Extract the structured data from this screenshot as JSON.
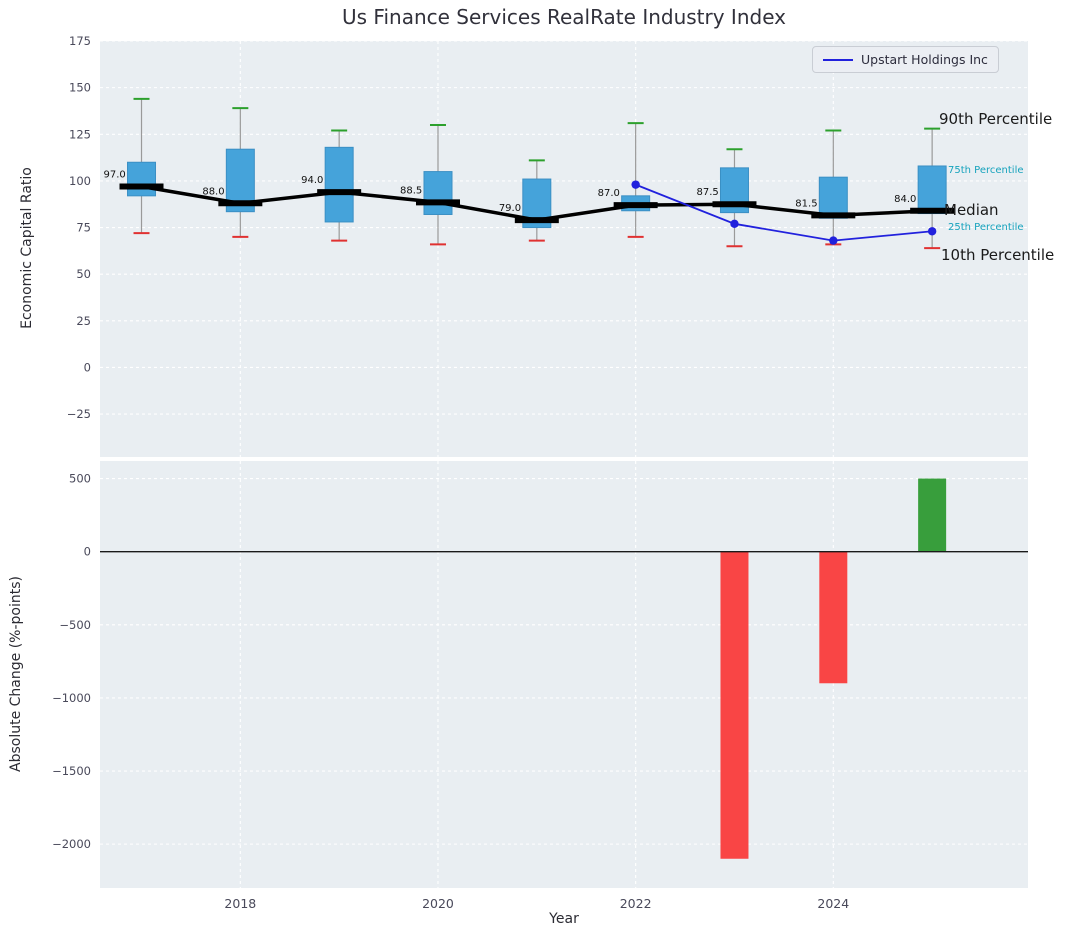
{
  "figure": {
    "title": "Us Finance Services RealRate Industry Index",
    "top_ylabel": "Economic Capital Ratio",
    "bottom_ylabel": "Absolute Change (%-points)",
    "xlabel": "Year",
    "legend_label": "Upstart Holdings Inc",
    "annotations": [
      {
        "id": "p90",
        "label": "90th Percentile"
      },
      {
        "id": "p75",
        "label": "75th Percentile"
      },
      {
        "id": "median",
        "label": "Median"
      },
      {
        "id": "p25",
        "label": "25th Percentile"
      },
      {
        "id": "p10",
        "label": "10th Percentile"
      }
    ]
  },
  "colors": {
    "plot_bg": "#e9eef2",
    "grid": "#ffffff",
    "box_fill": "#45a3da",
    "box_edge": "#3b8fc4",
    "whisker": "#9a9a9a",
    "cap_high": "#2ca02c",
    "cap_low": "#e03131",
    "median": "#000000",
    "company_line": "#2121dd",
    "tick_label": "#49495a",
    "annotation_teal": "#17a3bd",
    "bar_negative": "#f94545",
    "bar_positive": "#389e3c"
  },
  "chart_data": [
    {
      "type": "boxplot",
      "title": "Us Finance Services RealRate Industry Index",
      "ylabel": "Economic Capital Ratio",
      "ylim": [
        -48,
        175
      ],
      "yticks": [
        175,
        150,
        125,
        100,
        75,
        50,
        25,
        0,
        -25
      ],
      "xlim": [
        2016.58,
        2025.97
      ],
      "xticks": [
        2018,
        2020,
        2022,
        2024
      ],
      "grid": true,
      "legend_position": "upper right",
      "boxes": [
        {
          "year": 2017,
          "median": 97.0,
          "q1": 92,
          "q3": 110,
          "whisker_low": 72,
          "whisker_high": 144
        },
        {
          "year": 2018,
          "median": 88.0,
          "q1": 83.5,
          "q3": 117,
          "whisker_low": 70,
          "whisker_high": 139
        },
        {
          "year": 2019,
          "median": 94.0,
          "q1": 78,
          "q3": 118,
          "whisker_low": 68,
          "whisker_high": 127
        },
        {
          "year": 2020,
          "median": 88.5,
          "q1": 82,
          "q3": 105,
          "whisker_low": 66,
          "whisker_high": 130
        },
        {
          "year": 2021,
          "median": 79.0,
          "q1": 75,
          "q3": 101,
          "whisker_low": 68,
          "whisker_high": 111
        },
        {
          "year": 2022,
          "median": 87.0,
          "q1": 84,
          "q3": 92,
          "whisker_low": 70,
          "whisker_high": 131
        },
        {
          "year": 2023,
          "median": 87.5,
          "q1": 83,
          "q3": 107,
          "whisker_low": 65,
          "whisker_high": 117
        },
        {
          "year": 2024,
          "median": 81.5,
          "q1": 80,
          "q3": 102,
          "whisker_low": 66,
          "whisker_high": 127
        },
        {
          "year": 2025,
          "median": 84.0,
          "q1": 82.5,
          "q3": 108,
          "whisker_low": 64,
          "whisker_high": 128
        }
      ],
      "series": [
        {
          "name": "Upstart Holdings Inc",
          "type": "line",
          "x": [
            2022,
            2023,
            2024,
            2025
          ],
          "values": [
            98,
            77,
            68,
            73
          ]
        }
      ],
      "right_labels": [
        "90th Percentile",
        "75th Percentile",
        "Median",
        "25th Percentile",
        "10th Percentile"
      ]
    },
    {
      "type": "bar",
      "ylabel": "Absolute Change (%-points)",
      "xlabel": "Year",
      "ylim": [
        -2300,
        620
      ],
      "yticks": [
        500,
        0,
        -500,
        -1000,
        -1500,
        -2000
      ],
      "xlim": [
        2016.58,
        2025.97
      ],
      "xticks": [
        2018,
        2020,
        2022,
        2024
      ],
      "grid": true,
      "bars": [
        {
          "year": 2023,
          "value": -2100,
          "color": "#f94545"
        },
        {
          "year": 2024,
          "value": -900,
          "color": "#f94545"
        },
        {
          "year": 2025,
          "value": 500,
          "color": "#389e3c"
        }
      ]
    }
  ]
}
